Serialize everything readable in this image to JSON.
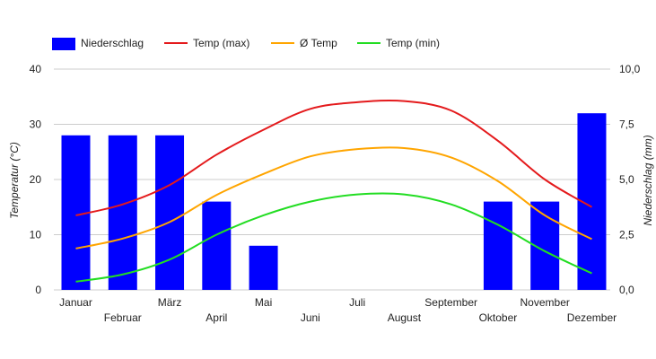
{
  "chart_data": {
    "type": "bar",
    "categories": [
      "Januar",
      "Februar",
      "März",
      "April",
      "Mai",
      "Juni",
      "Juli",
      "August",
      "September",
      "Oktober",
      "November",
      "Dezember"
    ],
    "ylabel_left": "Temperatur (°C)",
    "ylabel_right": "Niederschlag (mm)",
    "ylim_left": [
      0,
      40
    ],
    "ylim_right": [
      0,
      10
    ],
    "yticks_left": [
      "0",
      "10",
      "20",
      "30",
      "40"
    ],
    "yticks_right": [
      "0,0",
      "2,5",
      "5,0",
      "7,5",
      "10,0"
    ],
    "grid": true,
    "legend_position": "top-left",
    "series": [
      {
        "name": "Niederschlag",
        "kind": "bar",
        "axis": "right",
        "color": "#0000ff",
        "values": [
          7.0,
          7.0,
          7.0,
          4.0,
          2.0,
          0,
          0,
          0,
          0,
          4.0,
          4.0,
          8.0
        ]
      },
      {
        "name": "Temp (max)",
        "kind": "line",
        "axis": "left",
        "color": "#e41a1c",
        "values": [
          13.5,
          15.5,
          19.0,
          24.5,
          29.0,
          32.8,
          34.0,
          34.2,
          32.5,
          27.0,
          20.0,
          15.0
        ]
      },
      {
        "name": "Ø Temp",
        "kind": "line",
        "axis": "left",
        "color": "#ffa500",
        "values": [
          7.5,
          9.3,
          12.3,
          17.2,
          21.0,
          24.2,
          25.5,
          25.7,
          24.0,
          19.7,
          13.5,
          9.2
        ]
      },
      {
        "name": "Temp (min)",
        "kind": "line",
        "axis": "left",
        "color": "#22dd22",
        "values": [
          1.5,
          2.8,
          5.5,
          10.0,
          13.5,
          16.0,
          17.3,
          17.3,
          15.5,
          11.8,
          7.0,
          3.0
        ]
      }
    ]
  }
}
